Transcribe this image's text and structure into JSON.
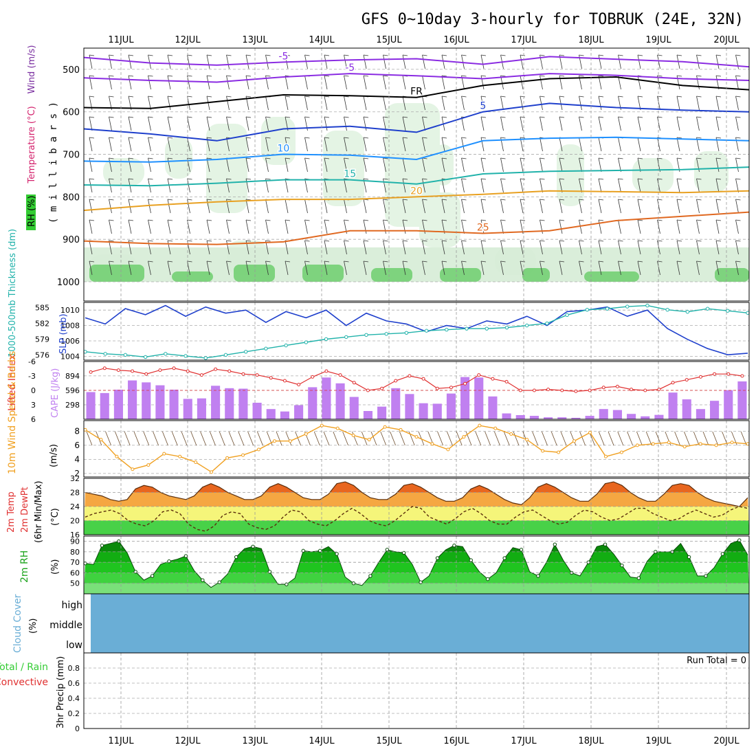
{
  "title": "GFS 0~10day 3-hourly for TOBRUK (24E, 32N)",
  "colors": {
    "temperature_label": "#d3206b",
    "wind_label": "#7a2fa0",
    "rh_green": "#33cc33",
    "thickness": "#20b2aa",
    "slp": "#1e3fcc",
    "cape": "#c080f0",
    "lifted_index": "#e03030",
    "wind10m": "#f0a020",
    "cloud": "#6aaed6",
    "precip_total": "#33cc33",
    "precip_convective": "#e03030"
  },
  "chart_data": [
    {
      "id": "upper-air",
      "type": "contour",
      "ylabel_parts": [
        "RH (%)",
        "Temperature (°C)",
        "Wind (m/s)"
      ],
      "ylabel_units": "( m i l l i b a r s )",
      "y_ticks": [
        500,
        600,
        700,
        800,
        900,
        1000
      ],
      "ylim": [
        450,
        1000
      ],
      "day_labels": [
        "11JUL",
        "12JUL",
        "13JUL",
        "14JUL",
        "15JUL",
        "16JUL",
        "17JUL",
        "18JUL",
        "19JUL",
        "20JUL"
      ],
      "isotherms": [
        {
          "label": "-5",
          "color": "#8a2be2",
          "levels": [
            472,
            485,
            490,
            483,
            478,
            475,
            488,
            470,
            476,
            482,
            494
          ]
        },
        {
          "label": "-5",
          "color": "#8a2be2",
          "levels": [
            520,
            526,
            530,
            518,
            510,
            515,
            522,
            510,
            514,
            522,
            526
          ]
        },
        {
          "label": "FR",
          "color": "#000000",
          "levels": [
            590,
            592,
            576,
            560,
            562,
            566,
            538,
            522,
            518,
            538,
            548
          ]
        },
        {
          "label": "5",
          "color": "#1e3fcc",
          "levels": [
            640,
            652,
            668,
            640,
            634,
            648,
            600,
            580,
            590,
            596,
            600
          ]
        },
        {
          "label": "10",
          "color": "#1e90ff",
          "levels": [
            716,
            718,
            712,
            700,
            702,
            712,
            668,
            662,
            660,
            664,
            668
          ]
        },
        {
          "label": "15",
          "color": "#20b2aa",
          "levels": [
            772,
            774,
            768,
            760,
            760,
            770,
            746,
            740,
            738,
            736,
            730
          ]
        },
        {
          "label": "20",
          "color": "#e8a020",
          "levels": [
            832,
            820,
            812,
            806,
            806,
            800,
            794,
            786,
            788,
            790,
            786
          ]
        },
        {
          "label": "25",
          "color": "#e06820",
          "levels": [
            904,
            910,
            912,
            906,
            880,
            880,
            886,
            880,
            856,
            846,
            836
          ]
        }
      ]
    },
    {
      "id": "thickness-slp",
      "type": "line",
      "ylabel_left": "1000-500mb Thickness (dm)",
      "ylabel_right": "SLP (mb)",
      "thickness_ticks": [
        576,
        579,
        582,
        585
      ],
      "slp_ticks": [
        1004,
        1006,
        1008,
        1010
      ],
      "thickness_ylim": [
        575,
        586
      ],
      "slp_ylim": [
        1003.5,
        1011
      ],
      "series": [
        {
          "name": "SLP",
          "axis": "right",
          "values": [
            1009,
            1008.2,
            1010.2,
            1009.4,
            1010.6,
            1009.2,
            1010.4,
            1009.6,
            1010.0,
            1008.4,
            1009.8,
            1009.0,
            1010.0,
            1008.0,
            1009.6,
            1008.6,
            1008.2,
            1007.2,
            1008.0,
            1007.6,
            1008.6,
            1008.2,
            1009.2,
            1008.0,
            1009.8,
            1010.0,
            1010.4,
            1009.2,
            1010.0,
            1007.6,
            1006.2,
            1005.0,
            1004.2,
            1004.4
          ]
        },
        {
          "name": "Thickness",
          "axis": "left",
          "values": [
            576.6,
            576.2,
            576.0,
            575.6,
            576.2,
            575.8,
            575.4,
            576.0,
            576.6,
            577.2,
            577.8,
            578.4,
            579.0,
            579.4,
            579.8,
            580.0,
            580.2,
            580.6,
            580.8,
            581.0,
            581.0,
            581.2,
            581.6,
            582.0,
            583.6,
            584.6,
            584.8,
            585.2,
            585.4,
            584.6,
            584.2,
            584.8,
            584.4,
            584.0
          ]
        }
      ]
    },
    {
      "id": "cape-li",
      "type": "bar+line",
      "ylabel_left": "Lifted Index",
      "ylabel_right": "CAPE (J/kg)",
      "li_ticks": [
        -6,
        -3,
        0,
        3,
        6
      ],
      "cape_ticks": [
        298,
        596,
        894
      ],
      "li_ylim": [
        6,
        -6
      ],
      "cape_ylim": [
        0,
        1190
      ],
      "cape": [
        560,
        540,
        610,
        800,
        760,
        700,
        610,
        420,
        430,
        690,
        640,
        630,
        340,
        210,
        160,
        290,
        660,
        860,
        740,
        460,
        170,
        260,
        640,
        520,
        330,
        320,
        530,
        870,
        860,
        470,
        120,
        85,
        70,
        40,
        40,
        30,
        70,
        210,
        190,
        110,
        60,
        90,
        550,
        410,
        210,
        380,
        600,
        780
      ],
      "li": [
        -3.8,
        -4.6,
        -4.2,
        -4.0,
        -3.4,
        -4.2,
        -4.6,
        -4.0,
        -3.2,
        -4.4,
        -4.0,
        -3.4,
        -3.2,
        -2.6,
        -2.0,
        -1.2,
        -2.8,
        -4.0,
        -3.2,
        -1.6,
        0.0,
        -0.4,
        -2.0,
        -3.0,
        -2.4,
        -0.4,
        -0.6,
        -1.4,
        -3.2,
        -2.4,
        -1.8,
        0.0,
        0.0,
        -0.2,
        0.0,
        0.2,
        0.0,
        -0.6,
        -0.8,
        -0.2,
        0.0,
        -0.2,
        -1.6,
        -2.2,
        -2.8,
        -3.4,
        -3.4,
        -3.0
      ]
    },
    {
      "id": "wind10m",
      "type": "line",
      "ylabel": "10m Wind Speed & Barbs",
      "units": "(m/s)",
      "ticks": [
        2,
        4,
        6,
        8
      ],
      "ylim": [
        1.5,
        9.5
      ],
      "values": [
        8.2,
        6.8,
        4.4,
        2.6,
        3.2,
        4.8,
        4.4,
        3.6,
        2.2,
        4.2,
        4.6,
        5.4,
        6.6,
        6.6,
        7.6,
        8.8,
        8.4,
        7.4,
        6.8,
        8.6,
        8.2,
        7.2,
        6.2,
        5.4,
        7.2,
        8.8,
        8.4,
        7.6,
        6.8,
        5.2,
        5.0,
        6.6,
        7.8,
        4.4,
        5.0,
        6.0,
        6.2,
        6.4,
        5.8,
        6.2,
        6.0,
        6.4,
        6.2
      ]
    },
    {
      "id": "temp2m",
      "type": "area",
      "ylabel_parts": [
        "2m Temp",
        "2m DewPt",
        "(6hr Min/Max)"
      ],
      "units": "(°C)",
      "ticks": [
        16,
        20,
        24,
        28,
        32
      ],
      "ylim": [
        16,
        32
      ],
      "temperature": [
        28,
        27.5,
        27,
        26,
        25.5,
        26,
        29,
        30,
        29.5,
        28,
        27,
        26.5,
        26,
        27,
        29.5,
        30.5,
        29.5,
        28,
        27,
        26,
        26,
        27,
        29.5,
        30.5,
        29.5,
        28,
        26.5,
        26,
        26,
        27.5,
        30.5,
        31,
        30,
        28,
        26.5,
        26,
        26,
        27.5,
        30,
        30.5,
        29.5,
        28,
        26.5,
        25.5,
        25.5,
        26.5,
        29,
        30,
        29,
        27.5,
        26,
        25,
        24.5,
        26.5,
        29.5,
        30.5,
        29.5,
        28,
        26.5,
        25.5,
        25.5,
        27.5,
        30.5,
        31,
        30,
        28,
        26.5,
        25.5,
        25.5,
        27.5,
        30,
        30.5,
        30,
        28,
        26.5,
        25.5,
        25,
        24.5,
        24,
        26.5
      ],
      "dewpoint": [
        21,
        22,
        22.5,
        23,
        22,
        20,
        19,
        18.5,
        20,
        22.5,
        23,
        22,
        19,
        17.5,
        17,
        18.5,
        21.5,
        22.5,
        22,
        19,
        18,
        17.5,
        18.5,
        21,
        23,
        22.5,
        20,
        19,
        18.5,
        20,
        22,
        23.5,
        22,
        20,
        19,
        18.5,
        20,
        22,
        24,
        23.5,
        21,
        20,
        19,
        20.5,
        22.5,
        23.5,
        22,
        20,
        19,
        19,
        21,
        22.5,
        23,
        21.5,
        20,
        19,
        19.5,
        21.5,
        23,
        22.5,
        21,
        20,
        20.5,
        22,
        23.5,
        23.5,
        22,
        21,
        20,
        20.5,
        22,
        23,
        22,
        21,
        21.5,
        23,
        24,
        23.5
      ]
    },
    {
      "id": "rh2m",
      "type": "area",
      "ylabel": "2m RH",
      "units": "(%)",
      "ticks": [
        50,
        60,
        70,
        80,
        90
      ],
      "ylim": [
        40,
        95
      ],
      "values": [
        69,
        68,
        86,
        88,
        90,
        79,
        61,
        53,
        57,
        68,
        71,
        73,
        76,
        62,
        53,
        46,
        51,
        59,
        75,
        83,
        85,
        83,
        61,
        49,
        49,
        55,
        81,
        80,
        81,
        85,
        78,
        56,
        50,
        48,
        57,
        70,
        82,
        80,
        79,
        68,
        51,
        57,
        74,
        82,
        86,
        85,
        72,
        61,
        54,
        60,
        74,
        84,
        82,
        61,
        57,
        70,
        87,
        72,
        60,
        57,
        70,
        85,
        87,
        78,
        67,
        56,
        55,
        71,
        80,
        80,
        80,
        88,
        75,
        57,
        57,
        65,
        78,
        88,
        91,
        77
      ]
    },
    {
      "id": "cloud-cover",
      "type": "heatmap",
      "ylabel": "Cloud Cover",
      "units": "(%)",
      "levels": [
        "high",
        "middle",
        "low"
      ],
      "values": [
        0,
        0,
        0
      ]
    },
    {
      "id": "precip",
      "type": "bar",
      "ylabel_parts": [
        "Total / Rain",
        "Convective"
      ],
      "ylabel_units": "3hr Precip (mm)",
      "ticks": [
        0,
        0.2,
        0.4,
        0.6,
        0.8
      ],
      "tick_labels": [
        "0",
        "0.2",
        "0.4",
        "0.6",
        "0.8"
      ],
      "ylim": [
        0,
        1
      ],
      "run_total": "Run Total = 0",
      "values": [],
      "x_labels": [
        "11JUL",
        "12JUL",
        "13JUL",
        "14JUL",
        "15JUL",
        "16JUL",
        "17JUL",
        "18JUL",
        "19JUL",
        "20JUL"
      ]
    }
  ]
}
